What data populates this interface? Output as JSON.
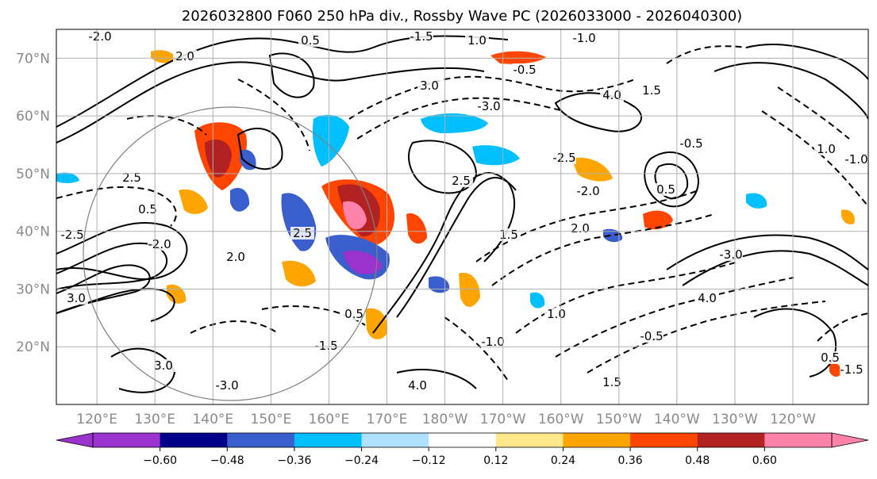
{
  "chart_data": {
    "type": "map_contour",
    "title": "2026032800 F060 250 hPa div., Rossby Wave PC (2026033000 - 2026040300)",
    "lat_ticks": [
      "70°N",
      "60°N",
      "50°N",
      "40°N",
      "30°N",
      "20°N"
    ],
    "lat_values": [
      70,
      60,
      50,
      40,
      30,
      20
    ],
    "lon_ticks": [
      "120°E",
      "130°E",
      "140°E",
      "150°E",
      "160°E",
      "170°E",
      "180°W",
      "170°W",
      "160°W",
      "150°W",
      "140°W",
      "130°W",
      "120°W"
    ],
    "lon_range_east_deg": [
      113,
      253
    ],
    "lat_range": [
      10,
      75
    ],
    "grid": true,
    "colorbar": {
      "orientation": "horizontal",
      "extend": "both",
      "ticks": [
        "−0.60",
        "−0.48",
        "−0.36",
        "−0.24",
        "−0.12",
        "0.12",
        "0.24",
        "0.36",
        "0.48",
        "0.60"
      ],
      "colors": [
        "#9a32cd",
        "#00008b",
        "#3a5fcd",
        "#00bfff",
        "#b0e2ff",
        "#ffffff",
        "#ffe78a",
        "#ffa500",
        "#ff4500",
        "#b22222",
        "#ff82ab",
        "#ff82ab"
      ]
    },
    "contour_labels": [
      "-2.0",
      "2.0",
      "0.5",
      "-1.5",
      "-1.0",
      "1.0",
      "-0.5",
      "3.0",
      "-3.0",
      "4.0",
      "1.5",
      "2.5",
      "0.5",
      "-2.5"
    ]
  }
}
